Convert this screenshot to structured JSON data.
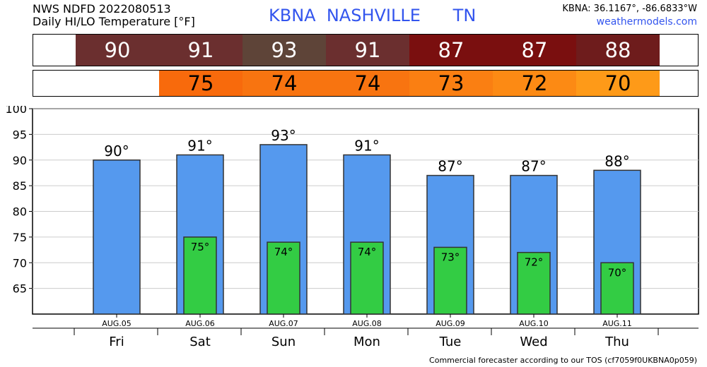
{
  "header": {
    "line1": "NWS NDFD 2022080513",
    "line2": "Daily HI/LO Temperature [°F]",
    "station_title": "KBNA  NASHVILLE      TN",
    "coords": "KBNA: 36.1167°, -86.6833°W",
    "site": "weathermodels.com"
  },
  "footer": "Commercial forecaster according to our TOS (cf7059f0UKBNA0p059)",
  "hi_strip": [
    {
      "text": "90",
      "color": "#6b2f2f"
    },
    {
      "text": "91",
      "color": "#6b2f2f"
    },
    {
      "text": "93",
      "color": "#5e4438"
    },
    {
      "text": "91",
      "color": "#6b2f2f"
    },
    {
      "text": "87",
      "color": "#7a0f0f"
    },
    {
      "text": "87",
      "color": "#7a0f0f"
    },
    {
      "text": "88",
      "color": "#6e1c1c"
    }
  ],
  "lo_strip": [
    {
      "text": "",
      "color": "#ffffff"
    },
    {
      "text": "75",
      "color": "#f86a0c"
    },
    {
      "text": "74",
      "color": "#f87410"
    },
    {
      "text": "74",
      "color": "#f87410"
    },
    {
      "text": "73",
      "color": "#fa7f12"
    },
    {
      "text": "72",
      "color": "#fc8a14"
    },
    {
      "text": "70",
      "color": "#fe9a18"
    }
  ],
  "chart_data": {
    "type": "bar",
    "dates": [
      "AUG.05",
      "AUG.06",
      "AUG.07",
      "AUG.08",
      "AUG.09",
      "AUG.10",
      "AUG.11"
    ],
    "days": [
      "Fri",
      "Sat",
      "Sun",
      "Mon",
      "Tue",
      "Wed",
      "Thu"
    ],
    "series": [
      {
        "values": [
          90,
          91,
          93,
          91,
          87,
          87,
          88
        ],
        "labels": [
          "90°",
          "91°",
          "93°",
          "91°",
          "87°",
          "87°",
          "88°"
        ],
        "color": "#5599ee"
      },
      {
        "values": [
          null,
          75,
          74,
          74,
          73,
          72,
          70
        ],
        "labels": [
          "",
          "75°",
          "74°",
          "74°",
          "73°",
          "72°",
          "70°"
        ],
        "color": "#33cc44"
      }
    ],
    "ylim": [
      60,
      100
    ],
    "yticks": [
      65,
      70,
      75,
      80,
      85,
      90,
      95,
      100
    ],
    "grid": true
  }
}
